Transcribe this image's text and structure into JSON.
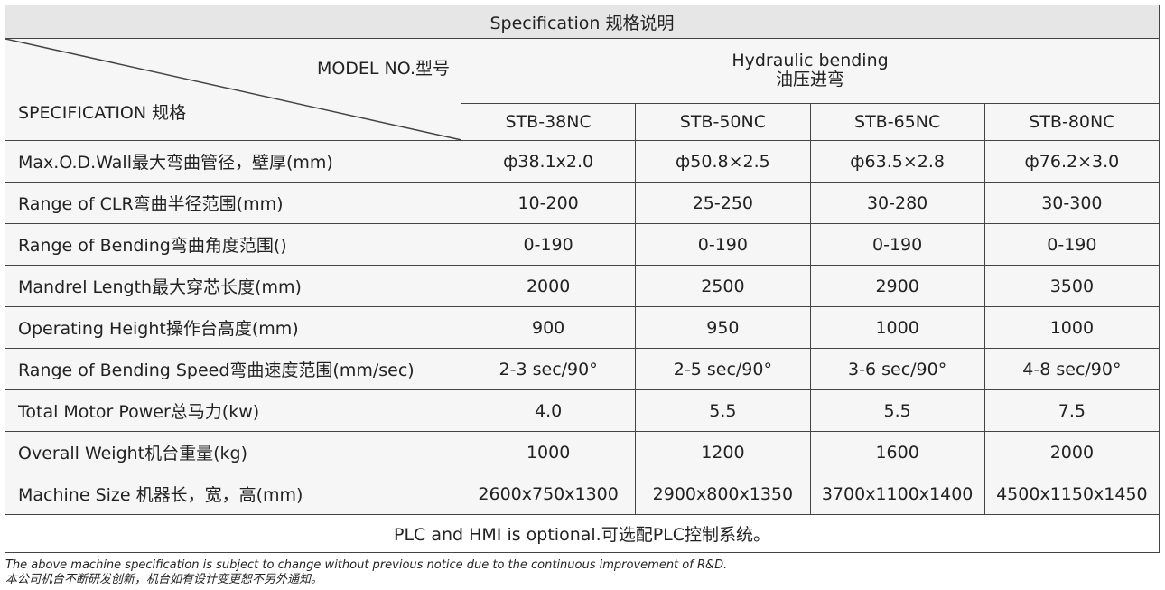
{
  "title": "Specification 规格说明",
  "header": {
    "model_label": "MODEL NO.型号",
    "spec_label": "SPECIFICATION 规格",
    "group": [
      "Hydraulic bending",
      "油压进弯"
    ],
    "models": [
      "STB-38NC",
      "STB-50NC",
      "STB-65NC",
      "STB-80NC"
    ]
  },
  "table": {
    "rows": [
      {
        "label": "Max.O.D.Wall最大弯曲管径，壁厚(mm)",
        "values": [
          "ф38.1x2.0",
          "ф50.8×2.5",
          "ф63.5×2.8",
          "ф76.2×3.0"
        ]
      },
      {
        "label": "Range of CLR弯曲半径范围(mm)",
        "values": [
          "10-200",
          "25-250",
          "30-280",
          "30-300"
        ]
      },
      {
        "label": "Range of Bending弯曲角度范围()",
        "values": [
          "0-190",
          "0-190",
          "0-190",
          "0-190"
        ]
      },
      {
        "label": "Mandrel Length最大穿芯长度(mm)",
        "values": [
          "2000",
          "2500",
          "2900",
          "3500"
        ]
      },
      {
        "label": "Operating Height操作台高度(mm)",
        "values": [
          "900",
          "950",
          "1000",
          "1000"
        ]
      },
      {
        "label": "Range of Bending Speed弯曲速度范围(mm/sec)",
        "values": [
          "2-3  sec/90°",
          "2-5  sec/90°",
          "3-6  sec/90°",
          "4-8  sec/90°"
        ]
      },
      {
        "label": "Total Motor Power总马力(kw)",
        "values": [
          "4.0",
          "5.5",
          "5.5",
          "7.5"
        ]
      },
      {
        "label": "Overall Weight机台重量(kg)",
        "values": [
          "1000",
          "1200",
          "1600",
          "2000"
        ]
      },
      {
        "label": "Machine Size 机器长，宽，高(mm)",
        "values": [
          "2600x750x1300",
          "2900x800x1350",
          "3700x1100x1400",
          "4500x1150x1450"
        ]
      }
    ]
  },
  "footer": "PLC and HMI is optional.可选配PLC控制系统。",
  "notes": [
    "The above machine specification is subject to change without previous notice due to the continuous improvement of R&D.",
    "本公司机台不断研发创新，机台如有设计变更恕不另外通知。"
  ]
}
